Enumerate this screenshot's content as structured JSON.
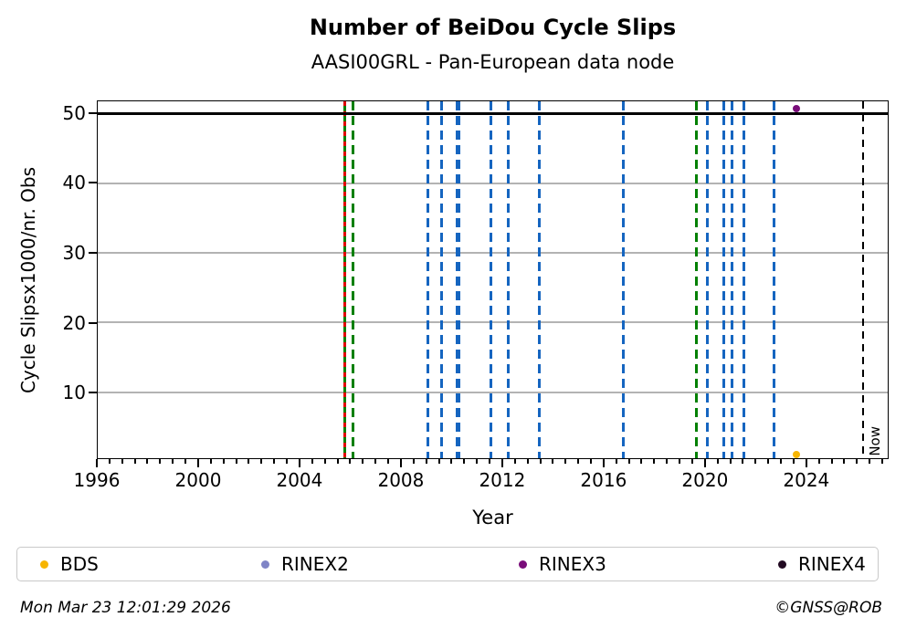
{
  "header": {
    "title": "Number of BeiDou Cycle Slips",
    "subtitle": "AASI00GRL - Pan-European data node"
  },
  "chart_data": {
    "type": "scatter",
    "title": "Number of BeiDou Cycle Slips",
    "subtitle": "AASI00GRL - Pan-European data node",
    "xlabel": "Year",
    "ylabel": "Cycle Slipsx1000/nr. Obs",
    "xlim": [
      1996,
      2027.25
    ],
    "ylim": [
      0.5,
      51.8
    ],
    "xticks": [
      1996,
      2000,
      2004,
      2008,
      2012,
      2016,
      2020,
      2024
    ],
    "xminor_step": 0.5,
    "yticks": [
      10,
      20,
      30,
      40,
      50
    ],
    "grid": true,
    "grid_color": "#b3b3b3",
    "hlines": [
      {
        "y": 50,
        "color": "#000000",
        "style": "solid"
      }
    ],
    "vlines": [
      {
        "x": 2005.77,
        "color": "#008000",
        "style": "solid",
        "overlay": {
          "color": "#e00000",
          "style": "dashed"
        }
      },
      {
        "x": 2006.09,
        "color": "#008000",
        "style": "dashed"
      },
      {
        "x": 2009.05,
        "color": "#1565c0",
        "style": "dashed"
      },
      {
        "x": 2009.59,
        "color": "#1565c0",
        "style": "dashed"
      },
      {
        "x": 2010.25,
        "color": "#1565c0",
        "style": "dashed",
        "weight": "thick"
      },
      {
        "x": 2011.57,
        "color": "#1565c0",
        "style": "dashed"
      },
      {
        "x": 2012.25,
        "color": "#1565c0",
        "style": "dashed"
      },
      {
        "x": 2013.48,
        "color": "#1565c0",
        "style": "dashed"
      },
      {
        "x": 2016.8,
        "color": "#1565c0",
        "style": "dashed"
      },
      {
        "x": 2019.67,
        "color": "#008000",
        "style": "dashed"
      },
      {
        "x": 2020.11,
        "color": "#1565c0",
        "style": "dashed"
      },
      {
        "x": 2020.77,
        "color": "#1565c0",
        "style": "dashed"
      },
      {
        "x": 2021.08,
        "color": "#1565c0",
        "style": "dashed"
      },
      {
        "x": 2021.55,
        "color": "#1565c0",
        "style": "dashed"
      },
      {
        "x": 2022.74,
        "color": "#1565c0",
        "style": "dashed"
      }
    ],
    "now_marker": {
      "x": 2026.27,
      "label": "Now",
      "color": "#000000",
      "style": "dashed"
    },
    "points": [
      {
        "x": 2023.64,
        "y": 50.8,
        "series": "RINEX3",
        "color": "#790d79"
      },
      {
        "x": 2023.64,
        "y": 1.0,
        "series": "BDS",
        "color": "#f7b500"
      }
    ],
    "legend": {
      "position": "bottom",
      "entries": [
        {
          "label": "BDS",
          "color": "#f7b500"
        },
        {
          "label": "RINEX2",
          "color": "#7f84c6"
        },
        {
          "label": "RINEX3",
          "color": "#790d79"
        },
        {
          "label": "RINEX4",
          "color": "#220a22"
        }
      ]
    }
  },
  "footer": {
    "timestamp": "Mon Mar 23 12:01:29 2026",
    "credit": "©GNSS@ROB"
  }
}
